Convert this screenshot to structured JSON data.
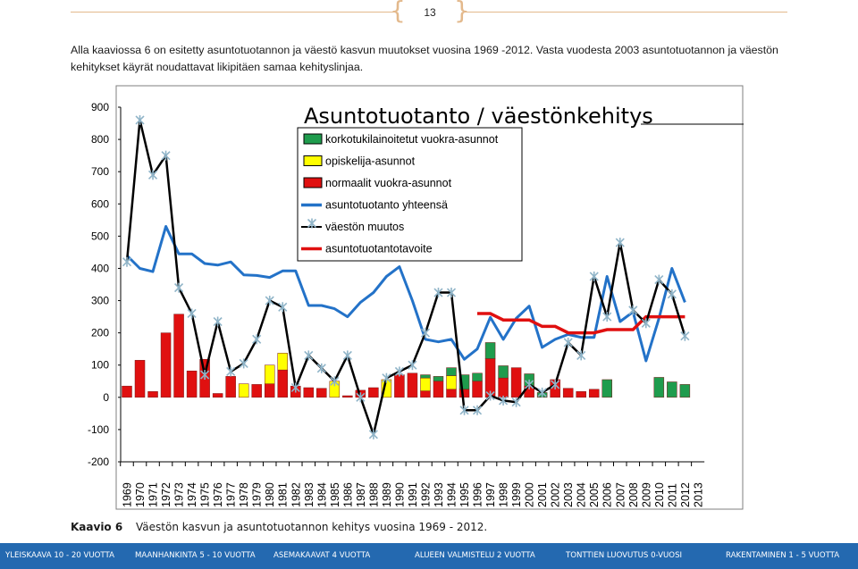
{
  "page_number": "13",
  "intro_text": "Alla kaaviossa 6 on esitetty asuntotuotannon ja väestö kasvun muutokset vuosina 1969 -2012. Vasta vuodesta 2003 asuntotuotannon ja väestön kehitykset käyrät noudattavat likipitäen samaa kehityslinjaa.",
  "caption_label": "Kaavio 6",
  "caption_text": "Väestön kasvun ja asuntotuotannon kehitys vuosina 1969 - 2012.",
  "footer_items": [
    "YLEISKAAVA 10 - 20 VUOTTA",
    "MAANHANKINTA 5 - 10 VUOTTA",
    "ASEMAKAAVAT 4 VUOTTA",
    "ALUEEN VALMISTELU 2 VUOTTA",
    "TONTTIEN LUOVUTUS 0-VUOSI",
    "RAKENTAMINEN 1 - 5 VUOTTA"
  ],
  "colors": {
    "green": "#1f9c4d",
    "yellow": "#ffff00",
    "red": "#e01010",
    "total_line": "#2372c8",
    "population_line": "#000000",
    "target_line": "#e01010",
    "marker": "#8fb4c8",
    "footer": "#2469b0"
  },
  "chart_data": {
    "type": "bar",
    "stacked": true,
    "title": "Asuntotuotanto / väestönkehitys",
    "ylim": [
      -200,
      900
    ],
    "yticks": [
      "900",
      "800",
      "700",
      "600",
      "500",
      "400",
      "300",
      "200",
      "100",
      "0",
      "-100",
      "-200"
    ],
    "categories": [
      "1969",
      "1970",
      "1971",
      "1972",
      "1973",
      "1974",
      "1975",
      "1976",
      "1977",
      "1978",
      "1979",
      "1980",
      "1981",
      "1982",
      "1983",
      "1984",
      "1985",
      "1986",
      "1987",
      "1988",
      "1989",
      "1990",
      "1991",
      "1992",
      "1993",
      "1994",
      "1995",
      "1996",
      "1997",
      "1998",
      "1999",
      "2000",
      "2001",
      "2002",
      "2003",
      "2004",
      "2005",
      "2006",
      "2007",
      "2008",
      "2009",
      "2010",
      "2011",
      "2012",
      "2013"
    ],
    "legend": [
      {
        "label": "korkotukilainoitetut vuokra-asunnot",
        "kind": "box",
        "color": "green"
      },
      {
        "label": "opiskelija-asunnot",
        "kind": "box",
        "color": "yellow"
      },
      {
        "label": "normaalit vuokra-asunnot",
        "kind": "box",
        "color": "red"
      },
      {
        "label": "asuntotuotanto yhteensä",
        "kind": "line",
        "color": "total_line"
      },
      {
        "label": "väestön muutos",
        "kind": "marker-line",
        "color": "population_line"
      },
      {
        "label": "asuntotuotantotavoite",
        "kind": "line",
        "color": "target_line"
      }
    ],
    "series": [
      {
        "key": "red",
        "values": [
          35,
          115,
          18,
          200,
          258,
          82,
          118,
          12,
          65,
          0,
          40,
          42,
          85,
          35,
          30,
          28,
          0,
          5,
          22,
          30,
          0,
          70,
          75,
          20,
          50,
          25,
          25,
          50,
          120,
          60,
          92,
          35,
          0,
          55,
          28,
          18,
          25,
          0,
          0,
          0,
          0,
          0,
          0,
          0,
          0
        ]
      },
      {
        "key": "yellow",
        "values": [
          0,
          0,
          0,
          0,
          0,
          0,
          0,
          0,
          0,
          42,
          0,
          58,
          52,
          0,
          0,
          0,
          50,
          0,
          0,
          0,
          55,
          0,
          0,
          40,
          0,
          42,
          0,
          0,
          0,
          0,
          0,
          0,
          0,
          0,
          0,
          0,
          0,
          0,
          0,
          0,
          0,
          0,
          0,
          0,
          0
        ]
      },
      {
        "key": "green",
        "values": [
          0,
          0,
          0,
          0,
          0,
          0,
          0,
          0,
          0,
          0,
          0,
          0,
          0,
          0,
          0,
          0,
          0,
          0,
          0,
          0,
          0,
          0,
          0,
          10,
          15,
          25,
          45,
          25,
          50,
          38,
          0,
          38,
          15,
          0,
          0,
          0,
          0,
          55,
          0,
          0,
          0,
          62,
          48,
          40,
          0
        ]
      }
    ],
    "total": [
      440,
      400,
      390,
      530,
      445,
      445,
      415,
      410,
      420,
      380,
      378,
      372,
      392,
      392,
      285,
      285,
      275,
      250,
      295,
      325,
      375,
      405,
      300,
      180,
      172,
      180,
      118,
      150,
      248,
      180,
      245,
      283,
      155,
      180,
      195,
      186,
      186,
      375,
      235,
      265,
      113,
      245,
      400,
      295,
      null
    ],
    "population": [
      420,
      860,
      690,
      750,
      340,
      260,
      70,
      235,
      80,
      105,
      180,
      300,
      280,
      30,
      130,
      90,
      50,
      130,
      0,
      -115,
      60,
      80,
      100,
      200,
      325,
      325,
      -40,
      -40,
      5,
      -10,
      -15,
      40,
      15,
      40,
      170,
      130,
      375,
      250,
      480,
      270,
      230,
      365,
      320,
      190,
      null
    ],
    "target": [
      null,
      null,
      null,
      null,
      null,
      null,
      null,
      null,
      null,
      null,
      null,
      null,
      null,
      null,
      null,
      null,
      null,
      null,
      null,
      null,
      null,
      null,
      null,
      null,
      null,
      null,
      null,
      260,
      260,
      240,
      240,
      240,
      220,
      220,
      200,
      200,
      200,
      210,
      210,
      210,
      250,
      250,
      250,
      250,
      null
    ]
  }
}
